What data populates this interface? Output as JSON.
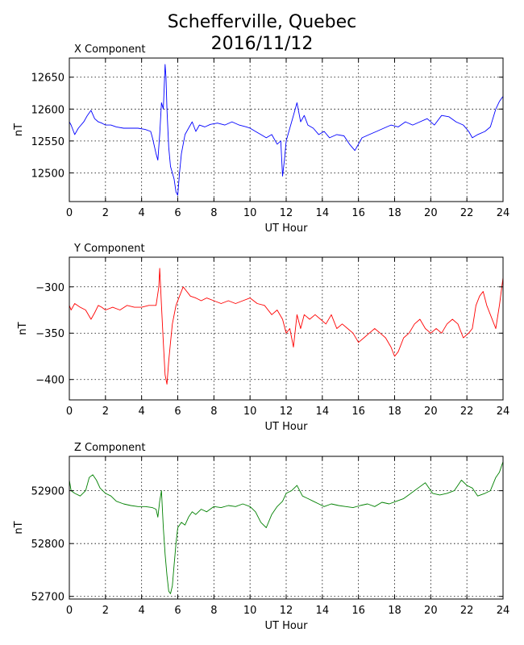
{
  "title_line1": "Schefferville, Quebec",
  "title_line2": "2016/11/12",
  "chart_data": [
    {
      "type": "line",
      "title": "X Component",
      "xlabel": "UT Hour",
      "ylabel": "nT",
      "xlim": [
        0,
        24
      ],
      "ylim": [
        12455,
        12680
      ],
      "xticks": [
        0,
        2,
        4,
        6,
        8,
        10,
        12,
        14,
        16,
        18,
        20,
        22,
        24
      ],
      "yticks": [
        12500,
        12550,
        12600,
        12650
      ],
      "grid": true,
      "color": "#0000ff",
      "series": [
        {
          "x": [
            0,
            0.1,
            0.3,
            0.5,
            0.8,
            1.0,
            1.2,
            1.4,
            1.6,
            1.8,
            2.0,
            2.3,
            2.6,
            3.0,
            3.4,
            3.8,
            4.2,
            4.5,
            4.6,
            4.8,
            4.9,
            5.0,
            5.1,
            5.2,
            5.3,
            5.35,
            5.4,
            5.5,
            5.6,
            5.7,
            5.8,
            5.9,
            6.0,
            6.1,
            6.2,
            6.4,
            6.6,
            6.8,
            7.0,
            7.2,
            7.5,
            7.8,
            8.2,
            8.6,
            9.0,
            9.4,
            9.8,
            10.0,
            10.3,
            10.6,
            10.9,
            11.2,
            11.5,
            11.7,
            11.8,
            11.9,
            12.0,
            12.2,
            12.4,
            12.6,
            12.8,
            13.0,
            13.2,
            13.5,
            13.8,
            14.1,
            14.4,
            14.8,
            15.2,
            15.5,
            15.8,
            16.2,
            16.6,
            17.0,
            17.4,
            17.8,
            18.2,
            18.6,
            19.0,
            19.4,
            19.8,
            20.2,
            20.6,
            21.0,
            21.4,
            21.8,
            22.1,
            22.3,
            22.6,
            23.0,
            23.3,
            23.6,
            23.8,
            24.0
          ],
          "y": [
            12580,
            12575,
            12560,
            12570,
            12580,
            12590,
            12598,
            12585,
            12580,
            12578,
            12575,
            12575,
            12572,
            12570,
            12570,
            12570,
            12568,
            12565,
            12555,
            12530,
            12520,
            12560,
            12610,
            12600,
            12670,
            12650,
            12600,
            12540,
            12510,
            12500,
            12490,
            12470,
            12465,
            12500,
            12530,
            12560,
            12570,
            12580,
            12565,
            12575,
            12572,
            12576,
            12578,
            12575,
            12580,
            12575,
            12572,
            12570,
            12565,
            12560,
            12555,
            12560,
            12545,
            12550,
            12495,
            12520,
            12550,
            12570,
            12590,
            12610,
            12580,
            12590,
            12575,
            12570,
            12560,
            12565,
            12555,
            12560,
            12558,
            12545,
            12535,
            12555,
            12560,
            12565,
            12570,
            12575,
            12572,
            12580,
            12575,
            12580,
            12585,
            12575,
            12590,
            12588,
            12580,
            12575,
            12565,
            12555,
            12560,
            12565,
            12572,
            12600,
            12612,
            12620
          ]
        }
      ]
    },
    {
      "type": "line",
      "title": "Y Component",
      "xlabel": "UT Hour",
      "ylabel": "nT",
      "xlim": [
        0,
        24
      ],
      "ylim": [
        -422,
        -268
      ],
      "xticks": [
        0,
        2,
        4,
        6,
        8,
        10,
        12,
        14,
        16,
        18,
        20,
        22,
        24
      ],
      "yticks": [
        -300,
        -350,
        -400
      ],
      "grid": true,
      "color": "#ff0000",
      "series": [
        {
          "x": [
            0,
            0.1,
            0.3,
            0.6,
            0.9,
            1.2,
            1.4,
            1.6,
            1.8,
            2.0,
            2.4,
            2.8,
            3.2,
            3.6,
            4.0,
            4.4,
            4.8,
            4.95,
            5.0,
            5.1,
            5.2,
            5.3,
            5.4,
            5.5,
            5.6,
            5.7,
            5.9,
            6.1,
            6.3,
            6.5,
            6.7,
            7.0,
            7.3,
            7.6,
            8.0,
            8.4,
            8.8,
            9.2,
            9.6,
            10.0,
            10.4,
            10.8,
            11.2,
            11.5,
            11.8,
            12.0,
            12.2,
            12.4,
            12.6,
            12.8,
            13.0,
            13.3,
            13.6,
            13.9,
            14.2,
            14.5,
            14.8,
            15.1,
            15.4,
            15.7,
            16.0,
            16.3,
            16.6,
            16.9,
            17.2,
            17.5,
            17.8,
            18.0,
            18.2,
            18.5,
            18.8,
            19.1,
            19.4,
            19.7,
            20.0,
            20.3,
            20.6,
            20.9,
            21.2,
            21.5,
            21.8,
            22.1,
            22.3,
            22.5,
            22.7,
            22.9,
            23.1,
            23.3,
            23.6,
            23.8,
            24.0
          ],
          "y": [
            -320,
            -325,
            -318,
            -322,
            -325,
            -335,
            -328,
            -320,
            -322,
            -325,
            -322,
            -325,
            -320,
            -322,
            -322,
            -320,
            -320,
            -300,
            -280,
            -320,
            -360,
            -395,
            -405,
            -380,
            -360,
            -340,
            -320,
            -310,
            -300,
            -305,
            -310,
            -312,
            -315,
            -312,
            -315,
            -318,
            -315,
            -318,
            -315,
            -312,
            -318,
            -320,
            -330,
            -325,
            -335,
            -350,
            -345,
            -365,
            -330,
            -345,
            -330,
            -335,
            -330,
            -335,
            -340,
            -330,
            -345,
            -340,
            -345,
            -350,
            -360,
            -355,
            -350,
            -345,
            -350,
            -355,
            -365,
            -375,
            -370,
            -355,
            -350,
            -340,
            -335,
            -345,
            -350,
            -345,
            -350,
            -340,
            -335,
            -340,
            -355,
            -350,
            -345,
            -320,
            -310,
            -305,
            -320,
            -330,
            -345,
            -320,
            -290
          ]
        }
      ]
    },
    {
      "type": "line",
      "title": "Z Component",
      "xlabel": "UT Hour",
      "ylabel": "nT",
      "xlim": [
        0,
        24
      ],
      "ylim": [
        52695,
        52965
      ],
      "xticks": [
        0,
        2,
        4,
        6,
        8,
        10,
        12,
        14,
        16,
        18,
        20,
        22,
        24
      ],
      "yticks": [
        52700,
        52800,
        52900
      ],
      "grid": true,
      "color": "#008000",
      "series": [
        {
          "x": [
            0,
            0.1,
            0.3,
            0.6,
            0.9,
            1.1,
            1.3,
            1.5,
            1.7,
            2.0,
            2.3,
            2.6,
            3.0,
            3.4,
            3.8,
            4.2,
            4.6,
            4.8,
            4.9,
            5.0,
            5.1,
            5.2,
            5.3,
            5.4,
            5.5,
            5.6,
            5.7,
            5.8,
            5.9,
            6.0,
            6.2,
            6.4,
            6.6,
            6.8,
            7.0,
            7.3,
            7.6,
            8.0,
            8.4,
            8.8,
            9.2,
            9.6,
            10.0,
            10.3,
            10.6,
            10.9,
            11.2,
            11.5,
            11.8,
            12.0,
            12.3,
            12.6,
            12.9,
            13.2,
            13.5,
            13.8,
            14.1,
            14.5,
            14.9,
            15.3,
            15.7,
            16.1,
            16.5,
            16.9,
            17.3,
            17.7,
            18.1,
            18.5,
            18.9,
            19.3,
            19.7,
            20.1,
            20.5,
            20.9,
            21.3,
            21.7,
            22.0,
            22.3,
            22.6,
            23.0,
            23.3,
            23.6,
            23.8,
            24.0
          ],
          "y": [
            52920,
            52900,
            52895,
            52890,
            52900,
            52925,
            52930,
            52920,
            52905,
            52895,
            52890,
            52880,
            52875,
            52872,
            52870,
            52870,
            52868,
            52865,
            52850,
            52880,
            52900,
            52830,
            52780,
            52740,
            52710,
            52705,
            52720,
            52760,
            52800,
            52830,
            52840,
            52835,
            52850,
            52860,
            52855,
            52865,
            52860,
            52870,
            52868,
            52872,
            52870,
            52875,
            52870,
            52860,
            52840,
            52830,
            52855,
            52870,
            52880,
            52895,
            52900,
            52910,
            52890,
            52885,
            52880,
            52875,
            52870,
            52875,
            52872,
            52870,
            52868,
            52872,
            52875,
            52870,
            52878,
            52875,
            52880,
            52885,
            52895,
            52905,
            52915,
            52895,
            52892,
            52895,
            52900,
            52920,
            52910,
            52905,
            52890,
            52895,
            52900,
            52925,
            52935,
            52955
          ]
        }
      ]
    }
  ]
}
